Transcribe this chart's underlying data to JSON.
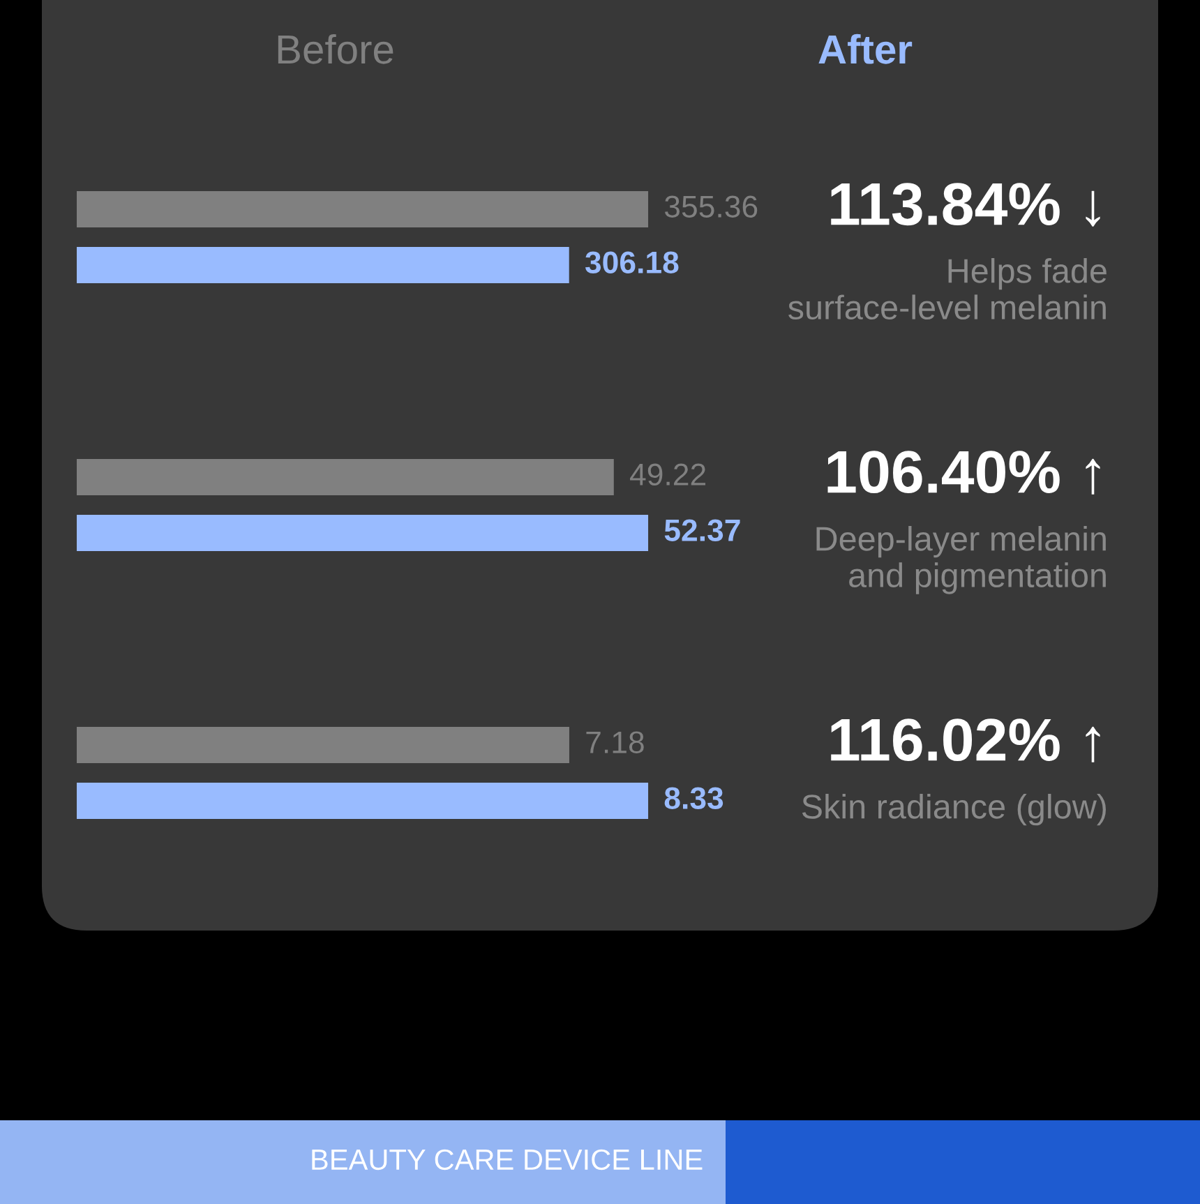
{
  "chart_data": [
    {
      "type": "bar",
      "orientation": "horizontal",
      "categories": [
        "Helps fade\nsurface-level melanin"
      ],
      "series": [
        {
          "name": "Before",
          "color": "#808080",
          "values": [
            355.36
          ]
        },
        {
          "name": "After",
          "color": "#99bbff",
          "values": [
            306.18
          ]
        }
      ],
      "tick_labels": "y",
      "data_labels": true,
      "legend": "top",
      "annotations": [
        "113.84% ↓"
      ]
    },
    {
      "type": "bar",
      "orientation": "horizontal",
      "categories": [
        "Deep-layer melanin\nand pigmentation"
      ],
      "series": [
        {
          "color": "#808080",
          "values": [
            49.22
          ]
        },
        {
          "color": "#99bbff",
          "values": [
            52.37
          ]
        }
      ],
      "tick_labels": "y",
      "data_labels": true,
      "annotations": [
        "106.40% ↑"
      ]
    },
    {
      "type": "bar",
      "orientation": "horizontal",
      "categories": [
        "Skin radiance (glow)"
      ],
      "series": [
        {
          "color": "#808080",
          "values": [
            7.18
          ]
        },
        {
          "color": "#99bbff",
          "values": [
            8.33
          ]
        }
      ],
      "tick_labels": "y",
      "data_labels": true,
      "annotations": [
        "116.02% ↑",
        "BEAUTY CARE DEVICE LINE"
      ]
    }
  ]
}
